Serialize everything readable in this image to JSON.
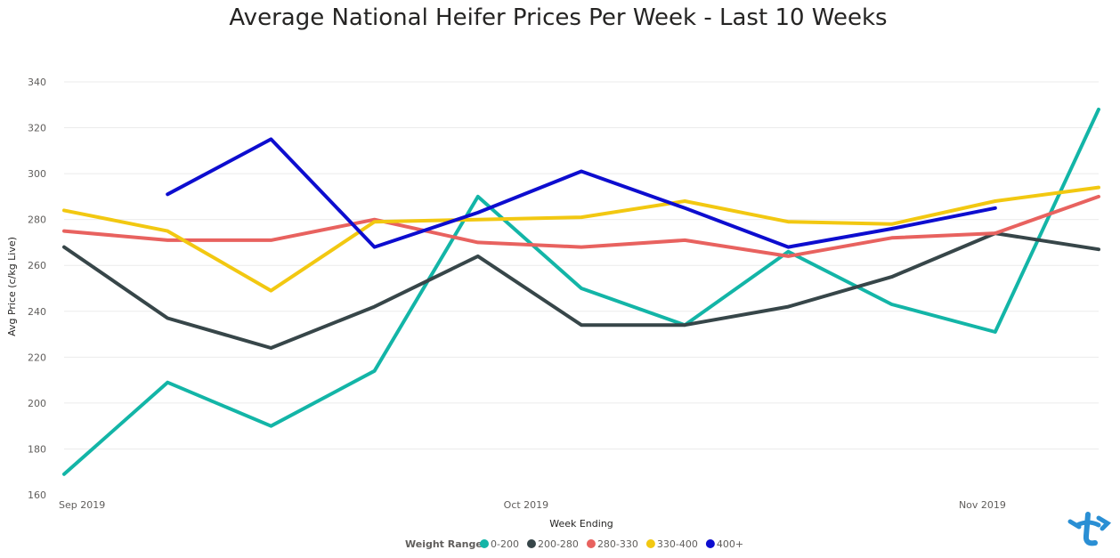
{
  "chart_data": {
    "type": "line",
    "title": "Average National Heifer Prices Per Week - Last 10 Weeks",
    "xlabel": "Week Ending",
    "ylabel": "Avg Price (c/kg Live)",
    "ylim": [
      160,
      340
    ],
    "yticks": [
      160,
      180,
      200,
      220,
      240,
      260,
      280,
      300,
      320,
      340
    ],
    "x_tick_labels": [
      {
        "label": "Sep 2019",
        "week_index": 0
      },
      {
        "label": "Oct 2019",
        "week_index": 4.3
      },
      {
        "label": "Nov 2019",
        "week_index": 8.7
      }
    ],
    "grid": true,
    "legend": {
      "title": "Weight Range",
      "position": "bottom-center"
    },
    "series": [
      {
        "name": "0-200",
        "color": "#13b5a7",
        "values": [
          169,
          209,
          190,
          214,
          290,
          250,
          234,
          266,
          243,
          231,
          328
        ]
      },
      {
        "name": "200-280",
        "color": "#374649",
        "values": [
          268,
          237,
          224,
          242,
          264,
          234,
          234,
          242,
          255,
          274,
          267
        ]
      },
      {
        "name": "280-330",
        "color": "#e8625f",
        "values": [
          275,
          271,
          271,
          280,
          270,
          268,
          271,
          264,
          272,
          274,
          290
        ]
      },
      {
        "name": "330-400",
        "color": "#f2c811",
        "values": [
          284,
          275,
          249,
          279,
          280,
          281,
          288,
          279,
          278,
          288,
          294
        ]
      },
      {
        "name": "400+",
        "color": "#0d0dcf",
        "values": [
          null,
          291,
          315,
          268,
          283,
          301,
          285,
          268,
          276,
          285,
          null
        ]
      }
    ]
  },
  "logo": {
    "name": "brand-logo",
    "color": "#2a8fd4"
  }
}
